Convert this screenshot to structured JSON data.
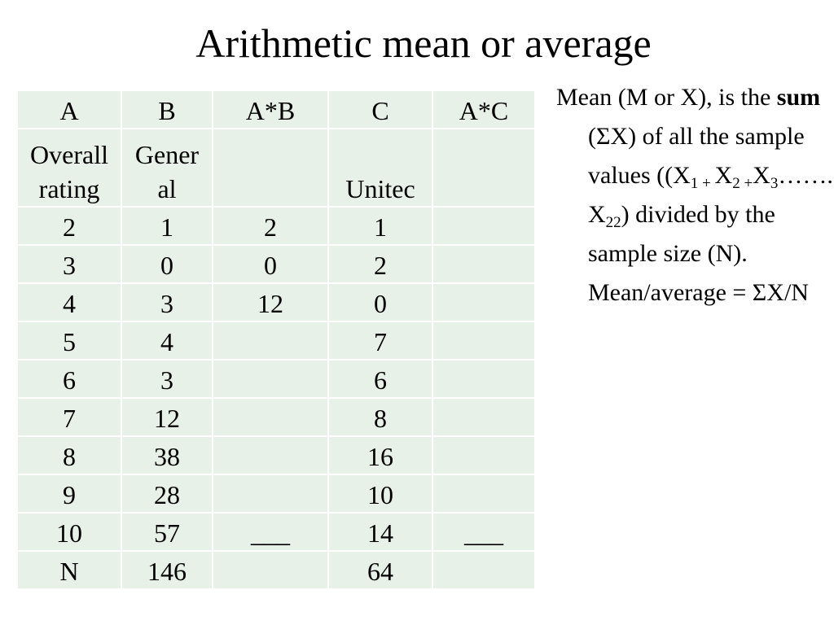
{
  "title": "Arithmetic mean or average",
  "table": {
    "header": [
      "A",
      "B",
      "A*B",
      "C",
      "A*C"
    ],
    "rows": [
      [
        "Overall rating",
        "General",
        null,
        "Unitec",
        null
      ],
      [
        "2",
        "1",
        "2",
        "1",
        null
      ],
      [
        "3",
        "0",
        "0",
        "2",
        null
      ],
      [
        "4",
        "3",
        "12",
        "0",
        null
      ],
      [
        "5",
        "4",
        null,
        "7",
        null
      ],
      [
        "6",
        "3",
        null,
        "6",
        null
      ],
      [
        "7",
        "12",
        null,
        "8",
        null
      ],
      [
        "8",
        "38",
        null,
        "16",
        null
      ],
      [
        "9",
        "28",
        null,
        "10",
        null
      ],
      [
        "10",
        "57",
        "___",
        "14",
        "___"
      ],
      [
        "N",
        "146",
        null,
        "64",
        null
      ]
    ]
  },
  "definition": [
    {
      "text": "Mean (M or X), is the "
    },
    {
      "text": "sum",
      "style": "bold"
    },
    {
      "text": " (ΣX) of all the sample values  ((X"
    },
    {
      "text": "1",
      "style": "sub"
    },
    {
      "text": " + ",
      "style": "sub"
    },
    {
      "text": "X"
    },
    {
      "text": "2",
      "style": "sub"
    },
    {
      "text": " +",
      "style": "sub"
    },
    {
      "text": "X"
    },
    {
      "text": "3",
      "style": "sub"
    },
    {
      "text": "……. X"
    },
    {
      "text": "22",
      "style": "sub"
    },
    {
      "text": ") divided by the sample size (N). Mean/average = ΣX/N"
    }
  ]
}
